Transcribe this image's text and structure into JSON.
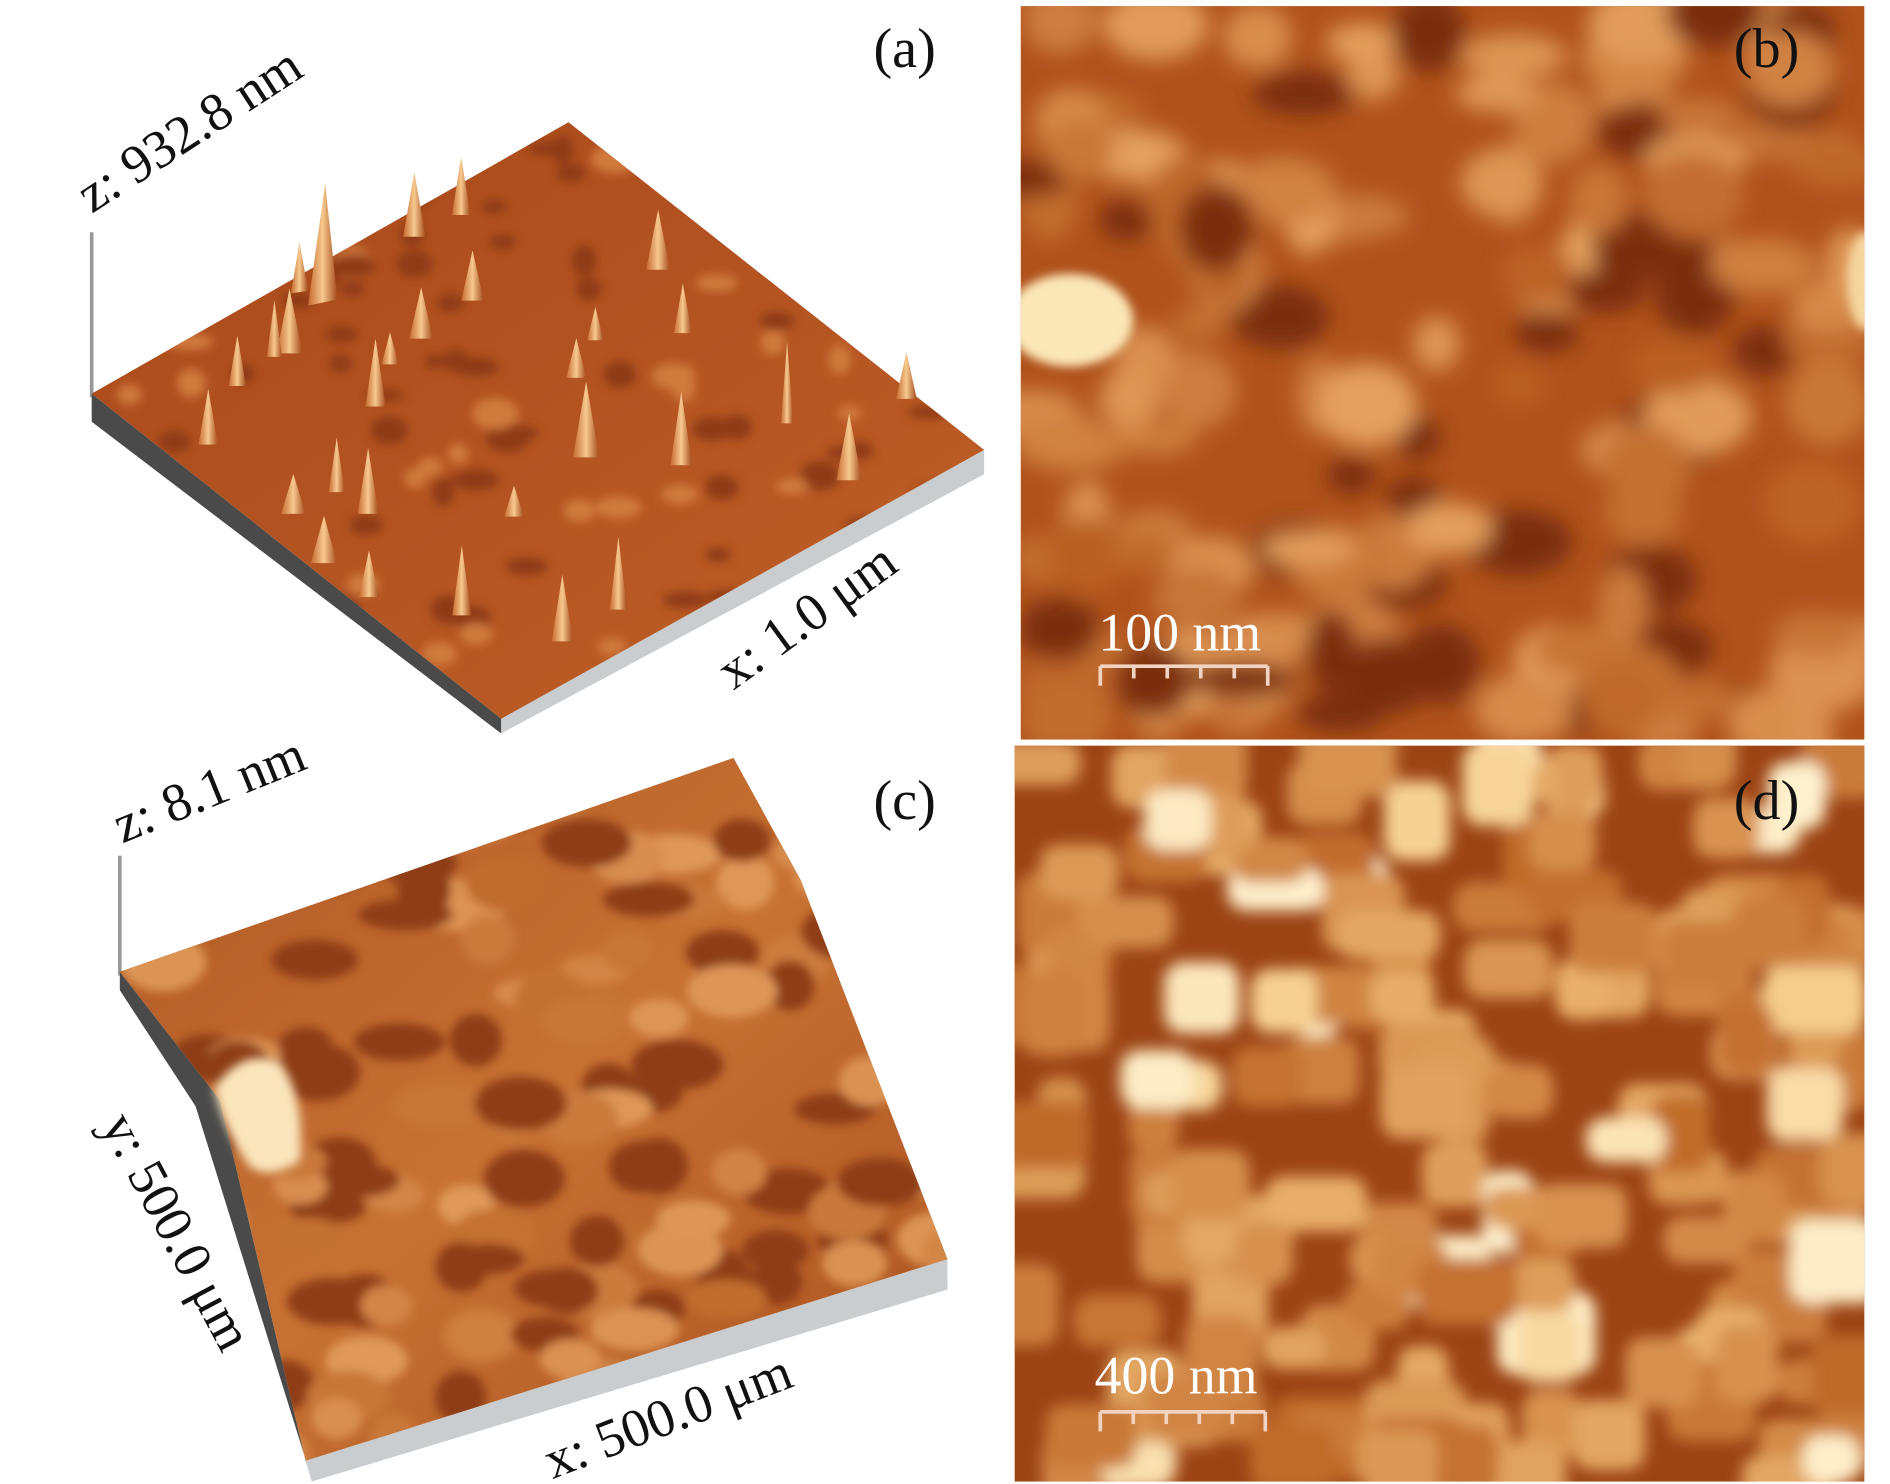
{
  "panels": [
    {
      "label": "(a)",
      "z_label": "z: 932.8 nm",
      "x_label": "x: 1.0 μm"
    },
    {
      "label": "(b)",
      "scale_bar": "100 nm"
    },
    {
      "label": "(c)",
      "z_label": "z: 8.1 nm",
      "y_label": "y: 500.0 μm",
      "x_label": "x: 500.0 μm"
    },
    {
      "label": "(d)",
      "scale_bar": "400 nm"
    }
  ]
}
